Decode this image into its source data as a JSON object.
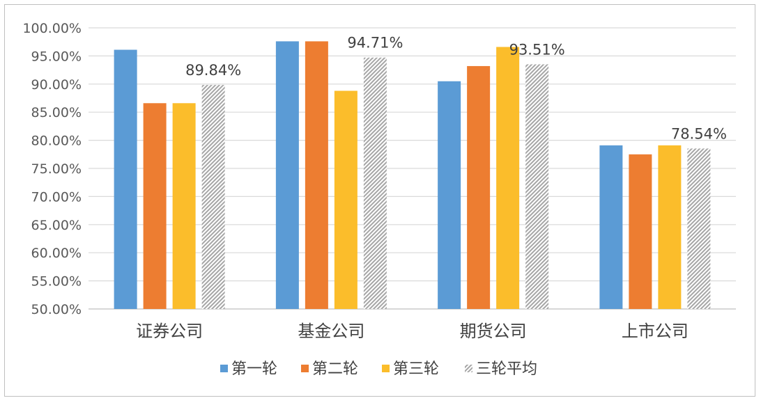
{
  "chart_data": {
    "type": "bar",
    "categories": [
      "证券公司",
      "基金公司",
      "期货公司",
      "上市公司"
    ],
    "series": [
      {
        "name": "第一轮",
        "values": [
          96.1,
          97.6,
          90.5,
          79.1
        ],
        "color": "#5b9bd5",
        "pattern": "solid"
      },
      {
        "name": "第二轮",
        "values": [
          86.6,
          97.6,
          93.2,
          77.5
        ],
        "color": "#ed7d31",
        "pattern": "solid"
      },
      {
        "name": "第三轮",
        "values": [
          86.6,
          88.8,
          96.6,
          79.1
        ],
        "color": "#fbbd2b",
        "pattern": "solid"
      },
      {
        "name": "三轮平均",
        "values": [
          89.84,
          94.71,
          93.51,
          78.54
        ],
        "color": "#a6a6a6",
        "pattern": "hatched"
      }
    ],
    "data_labels": [
      "89.84%",
      "94.71%",
      "93.51%",
      "78.54%"
    ],
    "y_ticks": [
      "50.00%",
      "55.00%",
      "60.00%",
      "65.00%",
      "70.00%",
      "75.00%",
      "80.00%",
      "85.00%",
      "90.00%",
      "95.00%",
      "100.00%"
    ],
    "ylim": [
      50,
      100
    ],
    "grid": true,
    "legend_position": "bottom",
    "title": "",
    "xlabel": "",
    "ylabel": ""
  }
}
